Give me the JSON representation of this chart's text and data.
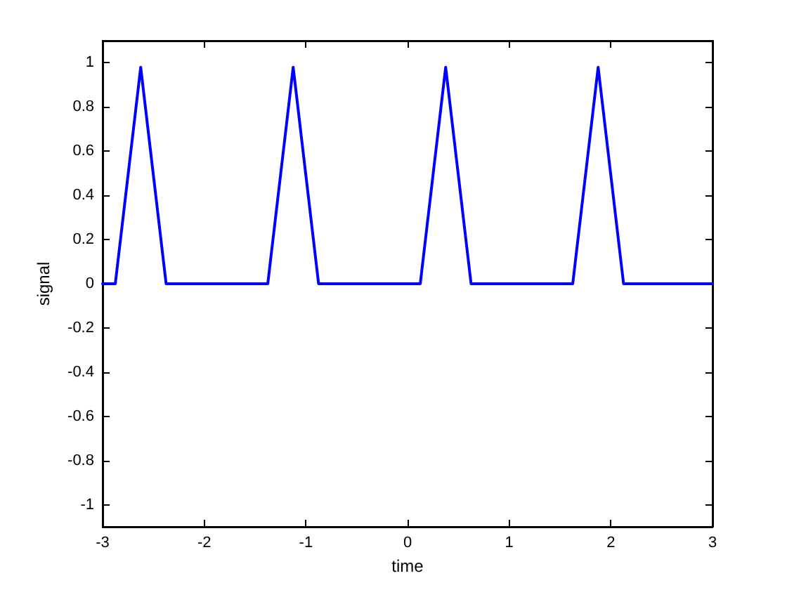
{
  "chart_data": {
    "type": "line",
    "xlabel": "time",
    "ylabel": "signal",
    "xlim": [
      -3,
      3
    ],
    "ylim": [
      -1.1,
      1.1
    ],
    "xticks": [
      -3,
      -2,
      -1,
      0,
      1,
      2,
      3
    ],
    "yticks": [
      -1,
      -0.8,
      -0.6,
      -0.4,
      -0.2,
      0,
      0.2,
      0.4,
      0.6,
      0.8,
      1
    ],
    "grid": false,
    "legend": false,
    "marker": "none",
    "line_style": "solid",
    "series": [
      {
        "color": "#0000ff",
        "x": [
          -3,
          -2.875,
          -2.625,
          -2.375,
          -1.375,
          -1.125,
          -0.875,
          0.125,
          0.375,
          0.625,
          1.625,
          1.875,
          2.125,
          3
        ],
        "values": [
          0,
          0,
          0.98,
          0,
          0,
          0.98,
          0,
          0,
          0.98,
          0,
          0,
          0.98,
          0,
          0
        ]
      }
    ]
  }
}
